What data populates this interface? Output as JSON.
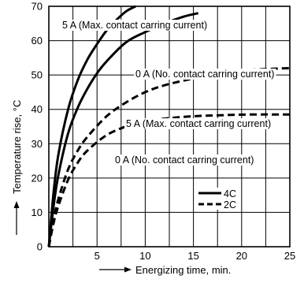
{
  "chart_data": {
    "type": "line",
    "xlabel": "Energizing time, min.",
    "ylabel": "Temperature rise, °C",
    "xlim": [
      0,
      25
    ],
    "ylim": [
      0,
      70
    ],
    "x_ticks": [
      0,
      5,
      10,
      15,
      20,
      25
    ],
    "y_ticks": [
      0,
      10,
      20,
      30,
      40,
      50,
      60,
      70
    ],
    "grid": true,
    "legend_position": "lower-right",
    "legend": [
      {
        "label": "4C",
        "style": "solid"
      },
      {
        "label": "2C",
        "style": "dashed"
      }
    ],
    "series": [
      {
        "style": "solid",
        "legend": "4C",
        "label": "5 A (Max. contact carring current)",
        "x": [
          0,
          0.5,
          1,
          2,
          3,
          4,
          5,
          6,
          7,
          8,
          9
        ],
        "y": [
          0,
          16,
          27,
          40,
          48.5,
          54.5,
          59,
          63,
          66,
          68.5,
          70
        ]
      },
      {
        "style": "solid",
        "legend": "4C",
        "label": "0 A (No. contact carring current)",
        "x": [
          0,
          0.5,
          1,
          2,
          3,
          4,
          5,
          6,
          8,
          10,
          12,
          14,
          15.5
        ],
        "y": [
          0,
          12,
          21,
          33,
          40.5,
          46,
          50.5,
          54,
          59.5,
          62.5,
          65,
          67,
          68
        ]
      },
      {
        "style": "dashed",
        "legend": "2C",
        "label": "5 A (Max. contact carring current)",
        "x": [
          0,
          0.5,
          1,
          2,
          3,
          4,
          6,
          8,
          10,
          12,
          15,
          18,
          21,
          25
        ],
        "y": [
          0,
          8,
          14,
          22.5,
          28,
          32,
          38,
          42,
          45,
          47,
          49,
          50.5,
          51.5,
          52
        ]
      },
      {
        "style": "dashed",
        "legend": "2C",
        "label": "0 A (No. contact carring current)",
        "x": [
          0,
          0.5,
          1,
          2,
          3,
          4,
          6,
          8,
          10,
          12,
          15,
          18,
          21,
          25
        ],
        "y": [
          0,
          7,
          12,
          19.5,
          24.5,
          28,
          32.5,
          35,
          36.5,
          37.3,
          38,
          38.3,
          38.5,
          38.5
        ]
      }
    ]
  }
}
